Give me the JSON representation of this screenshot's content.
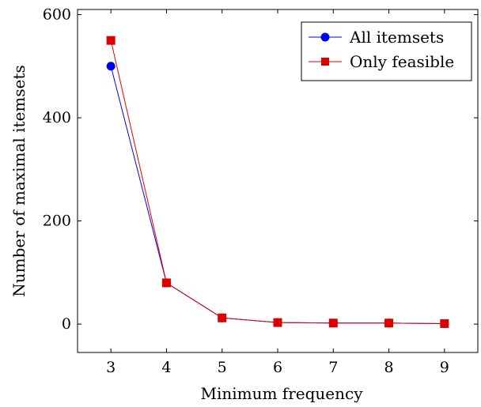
{
  "chart_data": {
    "type": "line",
    "xlabel": "Minimum frequency",
    "ylabel": "Number of maximal itemsets",
    "x": [
      3,
      4,
      5,
      6,
      7,
      8,
      9
    ],
    "xlim": [
      2.4,
      9.6
    ],
    "ylim": [
      -55,
      610
    ],
    "xticks": [
      3,
      4,
      5,
      6,
      7,
      8,
      9
    ],
    "yticks": [
      0,
      200,
      400,
      600
    ],
    "grid": false,
    "legend_position": "top-right",
    "series": [
      {
        "name": "All itemsets",
        "color": "#0000ee",
        "marker": "circle",
        "values": [
          500,
          80,
          12,
          3,
          2,
          2,
          1
        ]
      },
      {
        "name": "Only feasible",
        "color": "#dd0000",
        "marker": "square",
        "values": [
          550,
          80,
          12,
          3,
          2,
          2,
          1
        ]
      }
    ]
  }
}
